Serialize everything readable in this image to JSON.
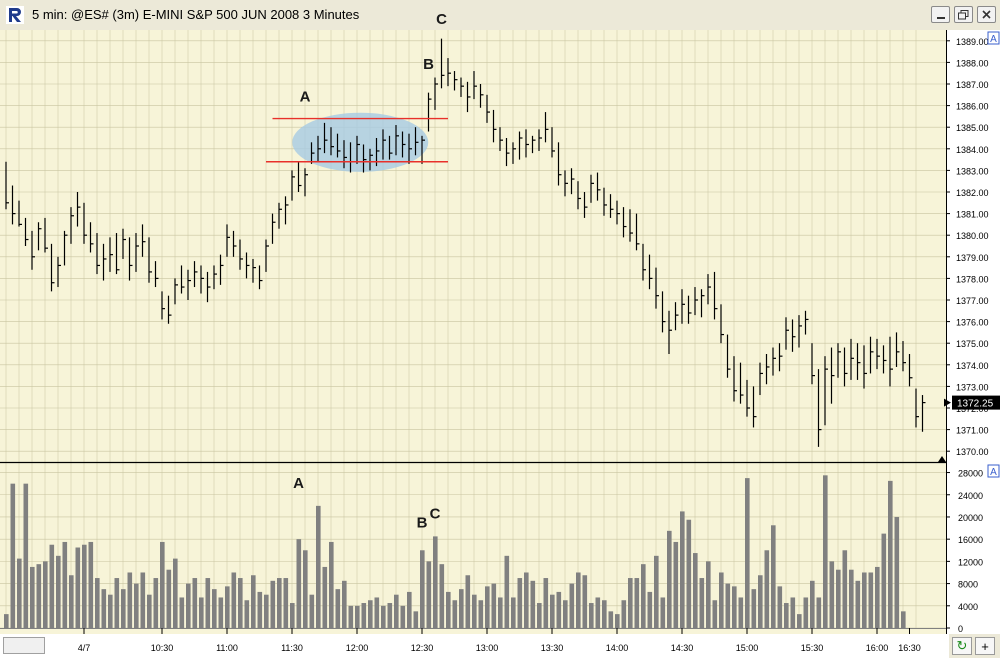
{
  "window": {
    "title": "5 min: @ES# (3m) E-MINI S&P 500 JUN 2008 3 Minutes",
    "app_icon": "r-logo-icon",
    "buttons": [
      "minimize-icon",
      "restore-icon",
      "close-icon"
    ]
  },
  "corner_buttons": {
    "refresh_icon": "refresh-icon",
    "plus_label": "+"
  },
  "colors": {
    "background": "#f7f4d8",
    "grid": "#c8c4a0",
    "bar": "#000000",
    "volume": "#808080",
    "annotation_line": "#e8302a",
    "ellipse": "#a6cbe4",
    "title_bar": "#ece9d8"
  },
  "chart_data": [
    {
      "type": "ohlc",
      "ylim": [
        1369.5,
        1389.5
      ],
      "y_ticks": [
        "1389.00",
        "1388.00",
        "1387.00",
        "1386.00",
        "1385.00",
        "1384.00",
        "1383.00",
        "1382.00",
        "1381.00",
        "1380.00",
        "1379.00",
        "1378.00",
        "1377.00",
        "1376.00",
        "1375.00",
        "1374.00",
        "1373.00",
        "1372.00",
        "1371.00",
        "1370.00"
      ],
      "y_tick_values": [
        1389,
        1388,
        1387,
        1386,
        1385,
        1384,
        1383,
        1382,
        1381,
        1380,
        1379,
        1378,
        1377,
        1376,
        1375,
        1374,
        1373,
        1372,
        1371,
        1370
      ],
      "x_ticks": [
        "4/7",
        "10:30",
        "11:00",
        "11:30",
        "12:00",
        "12:30",
        "13:00",
        "13:30",
        "14:00",
        "14:30",
        "15:00",
        "15:30",
        "16:00",
        "16:30"
      ],
      "x_tick_bar_index": [
        12,
        24,
        34,
        44,
        54,
        64,
        74,
        84,
        94,
        104,
        114,
        124,
        134,
        139
      ],
      "last_price": "1372.25",
      "panel_marker": "A",
      "annotations": [
        {
          "label": "A",
          "bar": 46,
          "price": 1386.0
        },
        {
          "label": "B",
          "bar": 65,
          "price": 1387.5
        },
        {
          "label": "C",
          "bar": 67,
          "price": 1389.6
        }
      ],
      "lines": [
        {
          "price": 1385.4,
          "from_bar": 41,
          "to_bar": 68
        },
        {
          "price": 1383.4,
          "from_bar": 40,
          "to_bar": 68
        }
      ],
      "ellipse": {
        "center_bar": 54.5,
        "center_price": 1384.3,
        "half_width_bars": 10,
        "half_height_price": 1.0
      },
      "bars": [
        {
          "h": 1383.4,
          "l": 1381.2,
          "c": 1381.5
        },
        {
          "h": 1382.3,
          "l": 1380.5,
          "c": 1381.0
        },
        {
          "h": 1381.6,
          "l": 1380.4,
          "c": 1380.5
        },
        {
          "h": 1380.8,
          "l": 1379.5,
          "c": 1379.8
        },
        {
          "h": 1380.2,
          "l": 1378.4,
          "c": 1379.0
        },
        {
          "h": 1380.6,
          "l": 1379.3,
          "c": 1380.3
        },
        {
          "h": 1380.8,
          "l": 1379.2,
          "c": 1379.4
        },
        {
          "h": 1379.6,
          "l": 1377.4,
          "c": 1377.8
        },
        {
          "h": 1379.0,
          "l": 1377.6,
          "c": 1378.6
        },
        {
          "h": 1380.2,
          "l": 1378.6,
          "c": 1380.0
        },
        {
          "h": 1381.3,
          "l": 1379.6,
          "c": 1380.9
        },
        {
          "h": 1382.0,
          "l": 1380.4,
          "c": 1381.3
        },
        {
          "h": 1381.5,
          "l": 1379.6,
          "c": 1380.0
        },
        {
          "h": 1380.6,
          "l": 1379.2,
          "c": 1379.6
        },
        {
          "h": 1380.1,
          "l": 1378.2,
          "c": 1378.6
        },
        {
          "h": 1379.6,
          "l": 1377.9,
          "c": 1378.9
        },
        {
          "h": 1379.9,
          "l": 1378.3,
          "c": 1379.1
        },
        {
          "h": 1380.1,
          "l": 1378.2,
          "c": 1378.4
        },
        {
          "h": 1380.3,
          "l": 1378.9,
          "c": 1379.8
        },
        {
          "h": 1379.9,
          "l": 1377.9,
          "c": 1378.6
        },
        {
          "h": 1380.1,
          "l": 1378.3,
          "c": 1379.5
        },
        {
          "h": 1380.5,
          "l": 1379.0,
          "c": 1379.7
        },
        {
          "h": 1379.9,
          "l": 1377.8,
          "c": 1378.3
        },
        {
          "h": 1378.8,
          "l": 1377.6,
          "c": 1378.0
        },
        {
          "h": 1377.4,
          "l": 1376.1,
          "c": 1376.6
        },
        {
          "h": 1377.2,
          "l": 1375.9,
          "c": 1376.3
        },
        {
          "h": 1378.0,
          "l": 1376.8,
          "c": 1377.7
        },
        {
          "h": 1378.6,
          "l": 1377.3,
          "c": 1377.6
        },
        {
          "h": 1378.4,
          "l": 1377.0,
          "c": 1377.9
        },
        {
          "h": 1378.8,
          "l": 1377.6,
          "c": 1378.3
        },
        {
          "h": 1378.6,
          "l": 1377.3,
          "c": 1378.0
        },
        {
          "h": 1378.3,
          "l": 1376.9,
          "c": 1377.6
        },
        {
          "h": 1378.6,
          "l": 1377.5,
          "c": 1378.2
        },
        {
          "h": 1379.1,
          "l": 1377.7,
          "c": 1378.6
        },
        {
          "h": 1380.5,
          "l": 1379.0,
          "c": 1379.9
        },
        {
          "h": 1380.2,
          "l": 1379.0,
          "c": 1379.5
        },
        {
          "h": 1379.8,
          "l": 1378.4,
          "c": 1378.9
        },
        {
          "h": 1379.2,
          "l": 1378.0,
          "c": 1378.6
        },
        {
          "h": 1378.9,
          "l": 1377.8,
          "c": 1378.5
        },
        {
          "h": 1378.6,
          "l": 1377.5,
          "c": 1377.9
        },
        {
          "h": 1379.8,
          "l": 1378.3,
          "c": 1379.5
        },
        {
          "h": 1381.0,
          "l": 1379.6,
          "c": 1380.6
        },
        {
          "h": 1381.5,
          "l": 1380.3,
          "c": 1381.2
        },
        {
          "h": 1381.8,
          "l": 1380.5,
          "c": 1381.4
        },
        {
          "h": 1383.0,
          "l": 1381.6,
          "c": 1382.7
        },
        {
          "h": 1383.4,
          "l": 1382.0,
          "c": 1382.3
        },
        {
          "h": 1383.1,
          "l": 1381.8,
          "c": 1382.8
        },
        {
          "h": 1384.3,
          "l": 1383.3,
          "c": 1383.8
        },
        {
          "h": 1384.6,
          "l": 1383.4,
          "c": 1384.0
        },
        {
          "h": 1385.2,
          "l": 1383.8,
          "c": 1384.4
        },
        {
          "h": 1385.0,
          "l": 1383.7,
          "c": 1384.1
        },
        {
          "h": 1384.7,
          "l": 1383.6,
          "c": 1383.9
        },
        {
          "h": 1384.4,
          "l": 1383.1,
          "c": 1383.6
        },
        {
          "h": 1384.3,
          "l": 1382.9,
          "c": 1383.4
        },
        {
          "h": 1384.6,
          "l": 1383.3,
          "c": 1384.2
        },
        {
          "h": 1384.2,
          "l": 1382.9,
          "c": 1383.5
        },
        {
          "h": 1384.0,
          "l": 1383.0,
          "c": 1383.7
        },
        {
          "h": 1384.5,
          "l": 1383.2,
          "c": 1383.9
        },
        {
          "h": 1384.9,
          "l": 1383.5,
          "c": 1384.4
        },
        {
          "h": 1384.6,
          "l": 1383.5,
          "c": 1383.8
        },
        {
          "h": 1385.1,
          "l": 1383.7,
          "c": 1384.6
        },
        {
          "h": 1384.8,
          "l": 1383.6,
          "c": 1384.2
        },
        {
          "h": 1384.7,
          "l": 1383.3,
          "c": 1384.0
        },
        {
          "h": 1385.0,
          "l": 1383.7,
          "c": 1384.3
        },
        {
          "h": 1384.6,
          "l": 1383.3,
          "c": 1384.4
        },
        {
          "h": 1386.6,
          "l": 1384.8,
          "c": 1386.3
        },
        {
          "h": 1387.3,
          "l": 1385.8,
          "c": 1387.0
        },
        {
          "h": 1389.1,
          "l": 1386.8,
          "c": 1387.4
        },
        {
          "h": 1388.2,
          "l": 1386.9,
          "c": 1387.5
        },
        {
          "h": 1387.6,
          "l": 1386.7,
          "c": 1387.2
        },
        {
          "h": 1387.3,
          "l": 1386.4,
          "c": 1386.9
        },
        {
          "h": 1387.1,
          "l": 1385.7,
          "c": 1386.4
        },
        {
          "h": 1387.6,
          "l": 1386.3,
          "c": 1386.9
        },
        {
          "h": 1387.0,
          "l": 1385.9,
          "c": 1386.5
        },
        {
          "h": 1386.5,
          "l": 1385.2,
          "c": 1385.7
        },
        {
          "h": 1385.8,
          "l": 1384.3,
          "c": 1384.9
        },
        {
          "h": 1385.0,
          "l": 1383.9,
          "c": 1384.4
        },
        {
          "h": 1384.5,
          "l": 1383.2,
          "c": 1383.8
        },
        {
          "h": 1384.3,
          "l": 1383.3,
          "c": 1384.0
        },
        {
          "h": 1384.8,
          "l": 1383.5,
          "c": 1384.5
        },
        {
          "h": 1384.9,
          "l": 1383.6,
          "c": 1384.2
        },
        {
          "h": 1384.6,
          "l": 1383.8,
          "c": 1384.4
        },
        {
          "h": 1384.9,
          "l": 1383.9,
          "c": 1384.5
        },
        {
          "h": 1385.7,
          "l": 1384.3,
          "c": 1384.9
        },
        {
          "h": 1385.0,
          "l": 1383.6,
          "c": 1383.9
        },
        {
          "h": 1384.3,
          "l": 1382.3,
          "c": 1382.8
        },
        {
          "h": 1383.0,
          "l": 1381.8,
          "c": 1382.4
        },
        {
          "h": 1383.1,
          "l": 1381.9,
          "c": 1382.6
        },
        {
          "h": 1382.5,
          "l": 1381.2,
          "c": 1381.7
        },
        {
          "h": 1382.0,
          "l": 1380.8,
          "c": 1381.3
        },
        {
          "h": 1382.8,
          "l": 1381.5,
          "c": 1382.4
        },
        {
          "h": 1382.9,
          "l": 1381.6,
          "c": 1382.1
        },
        {
          "h": 1382.2,
          "l": 1380.9,
          "c": 1381.4
        },
        {
          "h": 1381.9,
          "l": 1380.8,
          "c": 1381.2
        },
        {
          "h": 1381.6,
          "l": 1380.5,
          "c": 1381.0
        },
        {
          "h": 1381.3,
          "l": 1379.9,
          "c": 1380.4
        },
        {
          "h": 1381.2,
          "l": 1379.7,
          "c": 1380.1
        },
        {
          "h": 1381.0,
          "l": 1379.3,
          "c": 1379.6
        },
        {
          "h": 1379.6,
          "l": 1377.9,
          "c": 1378.4
        },
        {
          "h": 1379.1,
          "l": 1377.5,
          "c": 1378.0
        },
        {
          "h": 1378.5,
          "l": 1376.6,
          "c": 1377.2
        },
        {
          "h": 1377.4,
          "l": 1375.5,
          "c": 1376.0
        },
        {
          "h": 1376.5,
          "l": 1374.5,
          "c": 1375.6
        },
        {
          "h": 1376.9,
          "l": 1375.6,
          "c": 1376.3
        },
        {
          "h": 1377.5,
          "l": 1375.9,
          "c": 1376.8
        },
        {
          "h": 1377.2,
          "l": 1375.9,
          "c": 1376.4
        },
        {
          "h": 1377.6,
          "l": 1376.3,
          "c": 1377.0
        },
        {
          "h": 1377.5,
          "l": 1376.2,
          "c": 1377.2
        },
        {
          "h": 1378.2,
          "l": 1376.8,
          "c": 1377.6
        },
        {
          "h": 1378.3,
          "l": 1376.1,
          "c": 1376.6
        },
        {
          "h": 1376.8,
          "l": 1375.0,
          "c": 1375.4
        },
        {
          "h": 1375.4,
          "l": 1373.4,
          "c": 1373.8
        },
        {
          "h": 1374.4,
          "l": 1372.3,
          "c": 1372.8
        },
        {
          "h": 1374.1,
          "l": 1372.2,
          "c": 1372.6
        },
        {
          "h": 1373.3,
          "l": 1371.6,
          "c": 1372.0
        },
        {
          "h": 1373.0,
          "l": 1371.1,
          "c": 1371.6
        },
        {
          "h": 1374.1,
          "l": 1372.6,
          "c": 1373.6
        },
        {
          "h": 1374.5,
          "l": 1373.1,
          "c": 1373.9
        },
        {
          "h": 1374.8,
          "l": 1373.5,
          "c": 1374.3
        },
        {
          "h": 1375.0,
          "l": 1373.7,
          "c": 1374.4
        },
        {
          "h": 1376.2,
          "l": 1374.7,
          "c": 1375.6
        },
        {
          "h": 1376.1,
          "l": 1374.6,
          "c": 1375.3
        },
        {
          "h": 1376.3,
          "l": 1374.8,
          "c": 1375.8
        },
        {
          "h": 1376.5,
          "l": 1375.4,
          "c": 1376.1
        },
        {
          "h": 1375.0,
          "l": 1373.1,
          "c": 1373.5
        },
        {
          "h": 1373.8,
          "l": 1370.2,
          "c": 1371.0
        },
        {
          "h": 1374.4,
          "l": 1371.2,
          "c": 1373.8
        },
        {
          "h": 1374.8,
          "l": 1372.2,
          "c": 1373.5
        },
        {
          "h": 1375.0,
          "l": 1373.4,
          "c": 1374.6
        },
        {
          "h": 1374.8,
          "l": 1373.0,
          "c": 1373.6
        },
        {
          "h": 1375.2,
          "l": 1373.3,
          "c": 1374.3
        },
        {
          "h": 1375.0,
          "l": 1373.3,
          "c": 1374.1
        },
        {
          "h": 1374.9,
          "l": 1372.9,
          "c": 1373.6
        },
        {
          "h": 1375.3,
          "l": 1373.6,
          "c": 1374.6
        },
        {
          "h": 1375.2,
          "l": 1373.8,
          "c": 1374.4
        },
        {
          "h": 1374.9,
          "l": 1373.6,
          "c": 1374.2
        },
        {
          "h": 1375.3,
          "l": 1373.0,
          "c": 1373.8
        },
        {
          "h": 1375.5,
          "l": 1373.9,
          "c": 1374.6
        },
        {
          "h": 1375.1,
          "l": 1373.7,
          "c": 1374.1
        },
        {
          "h": 1374.5,
          "l": 1373.0,
          "c": 1373.4
        },
        {
          "h": 1372.9,
          "l": 1371.1,
          "c": 1371.6
        },
        {
          "h": 1372.6,
          "l": 1370.9,
          "c": 1372.25
        }
      ]
    },
    {
      "type": "bar",
      "ylim": [
        0,
        29000
      ],
      "y_ticks": [
        "28000",
        "24000",
        "20000",
        "16000",
        "12000",
        "8000",
        "4000",
        "0"
      ],
      "y_tick_values": [
        28000,
        24000,
        20000,
        16000,
        12000,
        8000,
        4000,
        0
      ],
      "panel_marker": "A",
      "annotations": [
        {
          "label": "A",
          "bar": 45,
          "value": 24500
        },
        {
          "label": "B",
          "bar": 64,
          "value": 17400
        },
        {
          "label": "C",
          "bar": 66,
          "value": 19000
        }
      ],
      "values": [
        2500,
        26000,
        12500,
        26000,
        11000,
        11500,
        12000,
        15000,
        13000,
        15500,
        9500,
        14500,
        15000,
        15500,
        9000,
        7000,
        6000,
        9000,
        7000,
        10000,
        8000,
        10000,
        6000,
        9000,
        15500,
        10500,
        12500,
        5500,
        8000,
        9000,
        5500,
        9000,
        7000,
        5500,
        7500,
        10000,
        9000,
        5000,
        9500,
        6500,
        6000,
        8500,
        9000,
        9000,
        4500,
        16000,
        14000,
        6000,
        22000,
        11000,
        15500,
        7000,
        8500,
        4000,
        4000,
        4500,
        5000,
        5500,
        4000,
        4500,
        6000,
        4000,
        6500,
        3000,
        14000,
        12000,
        16500,
        11500,
        6500,
        5000,
        7000,
        9500,
        6000,
        5000,
        7500,
        8000,
        5500,
        13000,
        5500,
        9000,
        10000,
        8500,
        4500,
        9000,
        6000,
        6500,
        5000,
        8000,
        10000,
        9500,
        4500,
        5500,
        5000,
        3000,
        2500,
        5000,
        9000,
        9000,
        11500,
        6500,
        13000,
        5500,
        17500,
        15500,
        21000,
        19500,
        13500,
        9000,
        12000,
        5000,
        10000,
        8000,
        7500,
        5500,
        27000,
        7000,
        9500,
        14000,
        18500,
        7500,
        4500,
        5500,
        2500,
        5500,
        8500,
        5500,
        27500,
        12000,
        10500,
        14000,
        10500,
        8500,
        10000,
        10000,
        11000,
        17000,
        26500,
        20000,
        3000
      ]
    }
  ]
}
